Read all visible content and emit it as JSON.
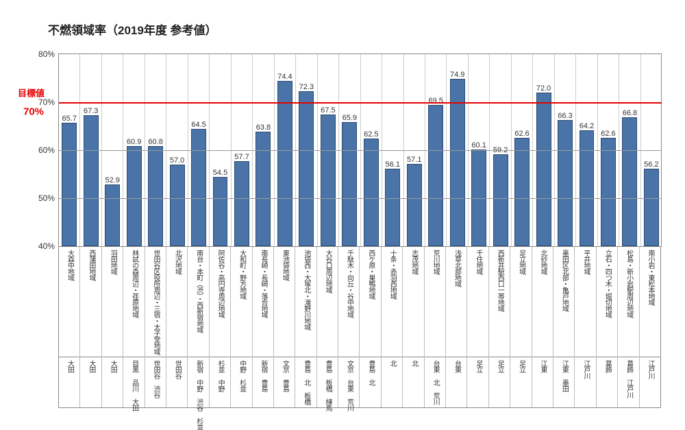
{
  "title": "不燃領域率（2019年度 参考値）",
  "chart": {
    "type": "bar",
    "ylim": [
      40,
      80
    ],
    "ytick_step": 10,
    "ytick_suffix": "%",
    "target_line": {
      "value": 70,
      "label": "目標値",
      "line_label": "70%",
      "color": "#e60000"
    },
    "bar_color": "#4a74a8",
    "bar_border": "#2a4a70",
    "grid_color": "#999999",
    "background": "#ffffff",
    "title_fontsize": 17,
    "value_fontsize": 11,
    "axis_fontsize": 12,
    "data": [
      {
        "value": 65.7,
        "area": "大森中地域",
        "ward": "大田"
      },
      {
        "value": 67.3,
        "area": "西蒲田地域",
        "ward": "大田"
      },
      {
        "value": 52.9,
        "area": "羽田地域",
        "ward": "大田"
      },
      {
        "value": 60.9,
        "area": "林試の森周辺・荏原地域",
        "ward": "目黒 品川 大田"
      },
      {
        "value": 60.8,
        "area": "世田谷区役所周辺・三宿・太子堂地域",
        "ward": "世田谷 渋谷"
      },
      {
        "value": 57.0,
        "area": "北沢地域",
        "ward": "世田谷"
      },
      {
        "value": 64.5,
        "area": "南台・本町（渋）・西新宿地域",
        "ward": "新宿 中野 渋谷 杉並"
      },
      {
        "value": 54.5,
        "area": "阿佐谷・高円寺周辺地域",
        "ward": "杉並 中野"
      },
      {
        "value": 57.7,
        "area": "大和町・野方地域",
        "ward": "中野 杉並"
      },
      {
        "value": 63.8,
        "area": "南長崎・長崎・落合地域",
        "ward": "新宿 豊島"
      },
      {
        "value": 74.4,
        "area": "東池袋地域",
        "ward": "文京 豊島"
      },
      {
        "value": 72.3,
        "area": "池袋西・大塚北・滝野川地域",
        "ward": "豊島 北 板橋"
      },
      {
        "value": 67.5,
        "area": "大谷口周辺地域",
        "ward": "豊島 板橋 練馬"
      },
      {
        "value": 65.9,
        "area": "千駄木・向丘・谷中地域",
        "ward": "文京 台東 荒川"
      },
      {
        "value": 62.5,
        "area": "西ケ原・巣鴨地域",
        "ward": "豊島 北"
      },
      {
        "value": 56.1,
        "area": "十条・赤羽西地域",
        "ward": "北"
      },
      {
        "value": 57.1,
        "area": "志茂地域",
        "ward": "北"
      },
      {
        "value": 69.5,
        "area": "荒川地域",
        "ward": "台東 北 荒川"
      },
      {
        "value": 74.9,
        "area": "浅草北部地域",
        "ward": "台東"
      },
      {
        "value": 60.1,
        "area": "千住地域",
        "ward": "足立"
      },
      {
        "value": 59.2,
        "area": "西新井駅西口一帯地域",
        "ward": "足立"
      },
      {
        "value": 62.6,
        "area": "足立地域",
        "ward": "足立"
      },
      {
        "value": 72.0,
        "area": "北砂地域",
        "ward": "江東"
      },
      {
        "value": 66.3,
        "area": "墨田区北部・亀戸地域",
        "ward": "江東 墨田"
      },
      {
        "value": 64.2,
        "area": "平井地域",
        "ward": "江戸川"
      },
      {
        "value": 62.6,
        "area": "立石・四つ木・堀切地域",
        "ward": "葛飾"
      },
      {
        "value": 66.8,
        "area": "松島・新小岩駅周辺地域",
        "ward": "葛飾 江戸川"
      },
      {
        "value": 56.2,
        "area": "南小岩・東松本地域",
        "ward": "江戸川"
      }
    ]
  }
}
